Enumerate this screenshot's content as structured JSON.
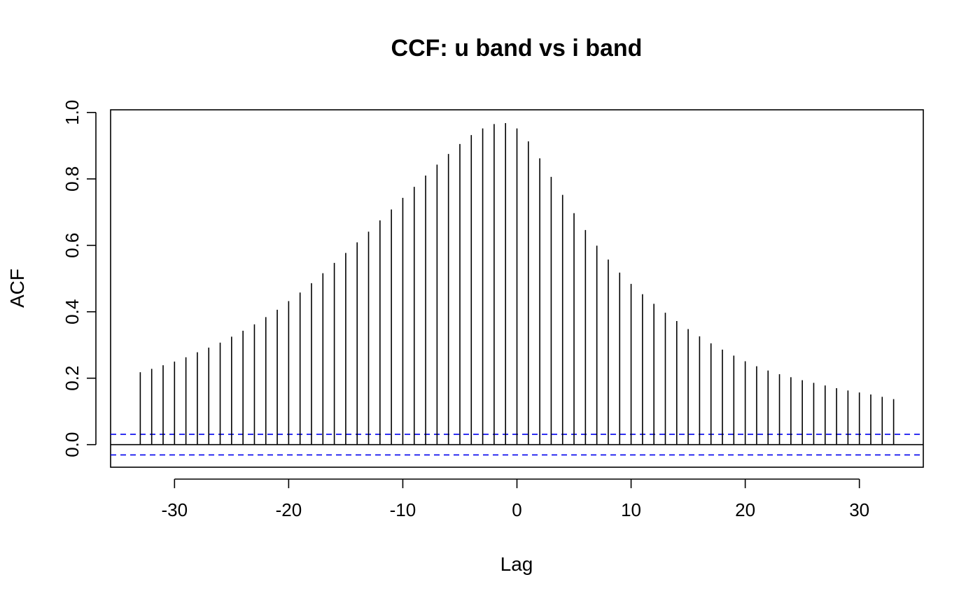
{
  "chart_data": {
    "type": "bar",
    "title": "CCF: u band vs i band",
    "xlabel": "Lag",
    "ylabel": "ACF",
    "xlim": [
      -35.6,
      35.6
    ],
    "ylim": [
      -0.068,
      1.008
    ],
    "xticks": [
      -30,
      -20,
      -10,
      0,
      10,
      20,
      30
    ],
    "xtick_labels": [
      "-30",
      "-20",
      "-10",
      "0",
      "10",
      "20",
      "30"
    ],
    "yticks": [
      0.0,
      0.2,
      0.4,
      0.6,
      0.8,
      1.0
    ],
    "ytick_labels": [
      "0.0",
      "0.2",
      "0.4",
      "0.6",
      "0.8",
      "1.0"
    ],
    "confidence_band": {
      "upper": 0.031,
      "lower": -0.031,
      "color": "#0000ee",
      "style": "dashed"
    },
    "bar_color": "#000000",
    "grid": false,
    "legend": "none",
    "x": [
      -33,
      -32,
      -31,
      -30,
      -29,
      -28,
      -27,
      -26,
      -25,
      -24,
      -23,
      -22,
      -21,
      -20,
      -19,
      -18,
      -17,
      -16,
      -15,
      -14,
      -13,
      -12,
      -11,
      -10,
      -9,
      -8,
      -7,
      -6,
      -5,
      -4,
      -3,
      -2,
      -1,
      0,
      1,
      2,
      3,
      4,
      5,
      6,
      7,
      8,
      9,
      10,
      11,
      12,
      13,
      14,
      15,
      16,
      17,
      18,
      19,
      20,
      21,
      22,
      23,
      24,
      25,
      26,
      27,
      28,
      29,
      30,
      31,
      32,
      33
    ],
    "values": [
      0.218,
      0.228,
      0.239,
      0.25,
      0.263,
      0.278,
      0.292,
      0.307,
      0.325,
      0.343,
      0.362,
      0.384,
      0.406,
      0.432,
      0.458,
      0.486,
      0.516,
      0.547,
      0.577,
      0.609,
      0.641,
      0.675,
      0.708,
      0.743,
      0.776,
      0.81,
      0.843,
      0.875,
      0.905,
      0.932,
      0.952,
      0.965,
      0.968,
      0.952,
      0.913,
      0.862,
      0.806,
      0.752,
      0.697,
      0.646,
      0.599,
      0.557,
      0.518,
      0.484,
      0.453,
      0.424,
      0.397,
      0.372,
      0.348,
      0.326,
      0.305,
      0.286,
      0.268,
      0.251,
      0.236,
      0.223,
      0.212,
      0.203,
      0.194,
      0.186,
      0.178,
      0.17,
      0.163,
      0.157,
      0.151,
      0.144,
      0.137
    ]
  }
}
